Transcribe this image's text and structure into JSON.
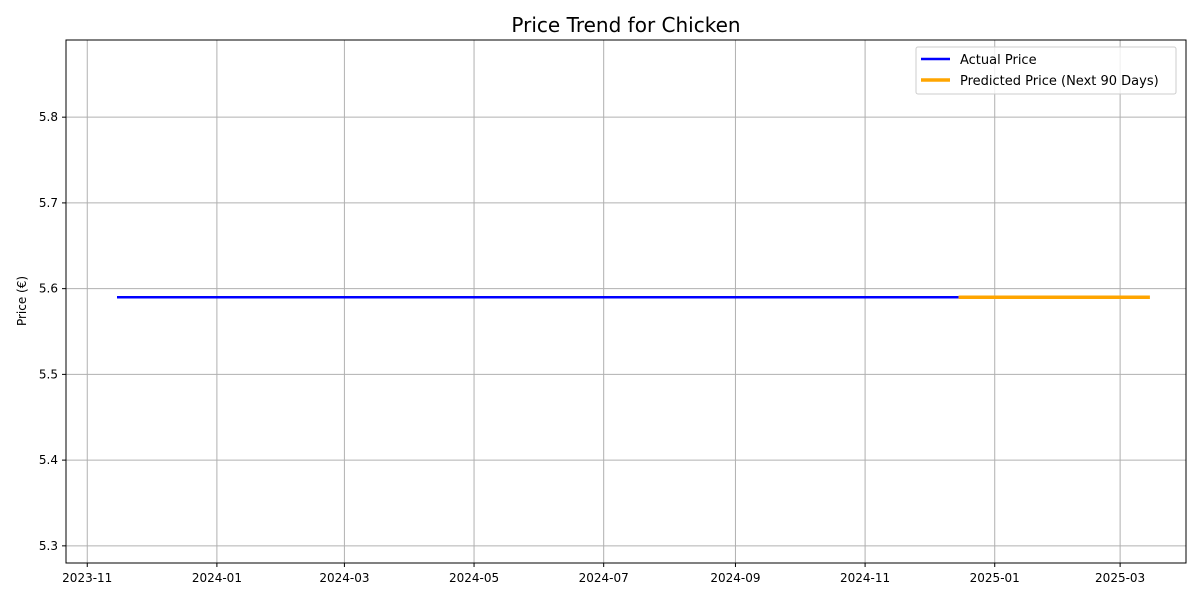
{
  "chart_data": {
    "type": "line",
    "title": "Price Trend for Chicken",
    "xlabel": "",
    "ylabel": "Price (€)",
    "x_ticks": [
      "2023-11",
      "2024-01",
      "2024-03",
      "2024-05",
      "2024-07",
      "2024-09",
      "2024-11",
      "2025-01",
      "2025-03"
    ],
    "y_ticks": [
      "5.3",
      "5.4",
      "5.5",
      "5.6",
      "5.7",
      "5.8"
    ],
    "xlim": [
      "2023-10-22",
      "2025-04-01"
    ],
    "ylim": [
      5.28,
      5.89
    ],
    "grid": true,
    "legend_position": "top-right",
    "series": [
      {
        "name": "Actual Price",
        "color": "#0000ff",
        "x": [
          "2023-11-15",
          "2024-12-15"
        ],
        "y": [
          5.59,
          5.59
        ]
      },
      {
        "name": "Predicted Price (Next 90 Days)",
        "color": "#ffa500",
        "x": [
          "2024-12-15",
          "2025-03-15"
        ],
        "y": [
          5.59,
          5.59
        ]
      }
    ]
  }
}
